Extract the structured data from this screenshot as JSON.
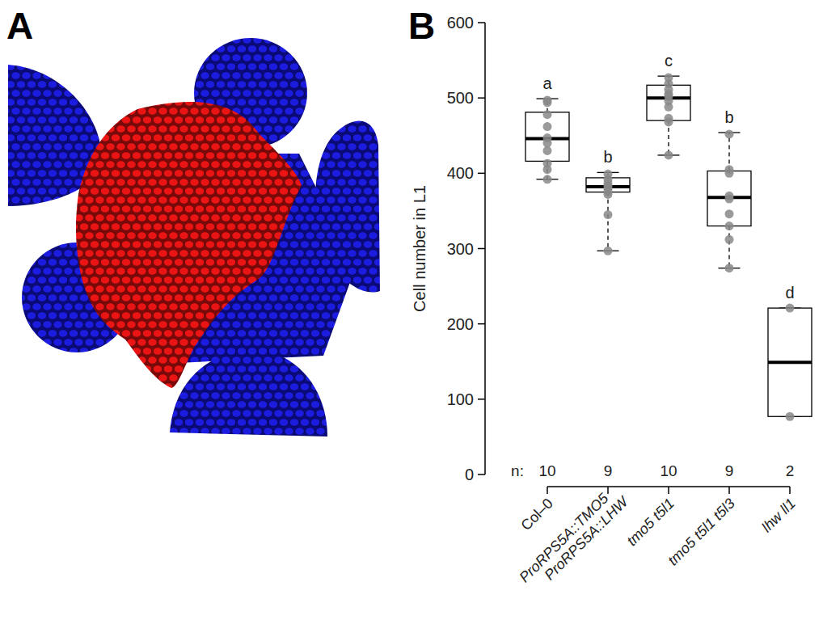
{
  "panel_labels": [
    "A",
    "B"
  ],
  "chart_data": {
    "type": "box",
    "y_label": "Cell number in L1",
    "categories": [
      "Col–0",
      "ProRPS5A::TMO5 ProRPS5A::LHW",
      "tmo5 t5l1",
      "tmo5 t5l1 t5l3",
      "lhw ll1"
    ],
    "boxes": [
      {
        "low": 392,
        "q1": 416,
        "median": 446,
        "q3": 481,
        "high": 499,
        "points": [
          392,
          405,
          413,
          430,
          440,
          447,
          462,
          478,
          494,
          497
        ]
      },
      {
        "low": 297,
        "q1": 375,
        "median": 382,
        "q3": 394,
        "high": 401,
        "points": [
          297,
          345,
          372,
          376,
          380,
          383,
          387,
          392,
          399
        ]
      },
      {
        "low": 424,
        "q1": 470,
        "median": 500,
        "q3": 517,
        "high": 529,
        "points": [
          424,
          468,
          473,
          488,
          496,
          502,
          505,
          511,
          519,
          527
        ]
      },
      {
        "low": 274,
        "q1": 330,
        "median": 368,
        "q3": 403,
        "high": 454,
        "points": [
          274,
          312,
          330,
          346,
          366,
          370,
          400,
          405,
          452
        ]
      },
      {
        "low": 77,
        "q1": 77,
        "median": 149,
        "q3": 221,
        "high": 221,
        "points": [
          77,
          221
        ]
      }
    ],
    "group_letters": [
      "a",
      "b",
      "c",
      "b",
      "d"
    ],
    "n_label": "n:",
    "n": [
      10,
      9,
      10,
      9,
      2
    ],
    "ylim": [
      0,
      600
    ],
    "yticks": [
      0,
      100,
      200,
      300,
      400,
      500,
      600
    ],
    "grid": false,
    "color": "#888888"
  }
}
